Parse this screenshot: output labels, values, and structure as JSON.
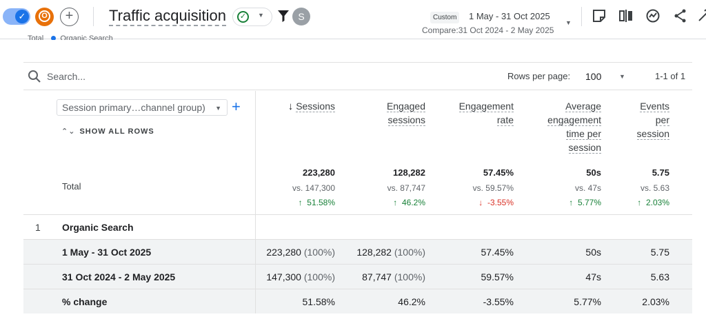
{
  "header": {
    "title": "Traffic acquisition",
    "date_badge": "Custom",
    "date_range": "1 May - 31 Oct 2025",
    "compare_range": "Compare:31 Oct 2024 - 2 May 2025",
    "avatar_o": "O",
    "avatar_s": "S",
    "check_icon_name": "check-circle-icon",
    "accent_color": "#1a73e8"
  },
  "legend": {
    "items": [
      "Total",
      "Organic Search"
    ]
  },
  "toolbar": {
    "search_placeholder": "Search...",
    "rows_per_page_label": "Rows per page:",
    "rows_per_page_value": "100",
    "pager_text": "1-1 of 1"
  },
  "dimension": {
    "selector_label": "Session primary…channel group)",
    "show_all_rows": "SHOW ALL ROWS",
    "total_label": "Total"
  },
  "columns": [
    {
      "label": "Sessions",
      "sorted": true,
      "total": "223,280",
      "vs": "vs. 147,300",
      "change": "51.58%",
      "direction": "up"
    },
    {
      "label": "Engaged sessions",
      "line1": "Engaged",
      "line2": "sessions",
      "total": "128,282",
      "vs": "vs. 87,747",
      "change": "46.2%",
      "direction": "up"
    },
    {
      "label": "Engagement rate",
      "line1": "Engagement",
      "line2": "rate",
      "total": "57.45%",
      "vs": "vs. 59.57%",
      "change": "-3.55%",
      "direction": "down"
    },
    {
      "label": "Average engagement time per session",
      "line1": "Average",
      "line2": "engagement",
      "line3": "time per",
      "line4": "session",
      "total": "50s",
      "vs": "vs. 47s",
      "change": "5.77%",
      "direction": "up"
    },
    {
      "label": "Events per session",
      "line1": "Events",
      "line2": "per",
      "line3": "session",
      "total": "5.75",
      "vs": "vs. 5.63",
      "change": "2.03%",
      "direction": "up"
    }
  ],
  "rows": {
    "group": {
      "index": "1",
      "name": "Organic Search"
    },
    "current": {
      "name": "1 May - 31 Oct 2025",
      "sessions": "223,280",
      "sessions_pct": "(100%)",
      "engaged": "128,282",
      "engaged_pct": "(100%)",
      "rate": "57.45%",
      "avg_time": "50s",
      "events": "5.75"
    },
    "previous": {
      "name": "31 Oct 2024 - 2 May 2025",
      "sessions": "147,300",
      "sessions_pct": "(100%)",
      "engaged": "87,747",
      "engaged_pct": "(100%)",
      "rate": "59.57%",
      "avg_time": "47s",
      "events": "5.63"
    },
    "change": {
      "name": "% change",
      "sessions": "51.58%",
      "engaged": "46.2%",
      "rate": "-3.55%",
      "avg_time": "5.77%",
      "events": "2.03%"
    }
  }
}
